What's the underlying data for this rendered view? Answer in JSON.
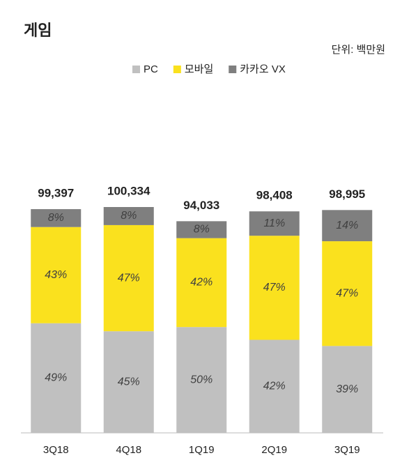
{
  "chart_data": {
    "type": "stacked_bar",
    "title": "게임",
    "unit_note": "단위: 백만원",
    "categories": [
      "3Q18",
      "4Q18",
      "1Q19",
      "2Q19",
      "3Q19"
    ],
    "totals": {
      "values": [
        99397,
        100334,
        94033,
        98408,
        98995
      ],
      "value_labels": [
        "99,397",
        "100,334",
        "94,033",
        "98,408",
        "98,995"
      ]
    },
    "series": [
      {
        "name": "PC",
        "color": "#c0c0c0",
        "values": [
          49,
          45,
          50,
          42,
          39
        ],
        "value_labels": [
          "49%",
          "45%",
          "50%",
          "42%",
          "39%"
        ]
      },
      {
        "name": "모바일",
        "color": "#fae11e",
        "values": [
          43,
          47,
          42,
          47,
          47
        ],
        "value_labels": [
          "43%",
          "47%",
          "42%",
          "47%",
          "47%"
        ]
      },
      {
        "name": "카카오 VX",
        "color": "#7f7f7f",
        "values": [
          8,
          8,
          8,
          11,
          14
        ],
        "value_labels": [
          "8%",
          "8%",
          "8%",
          "11%",
          "14%"
        ]
      }
    ],
    "legend": "top"
  }
}
